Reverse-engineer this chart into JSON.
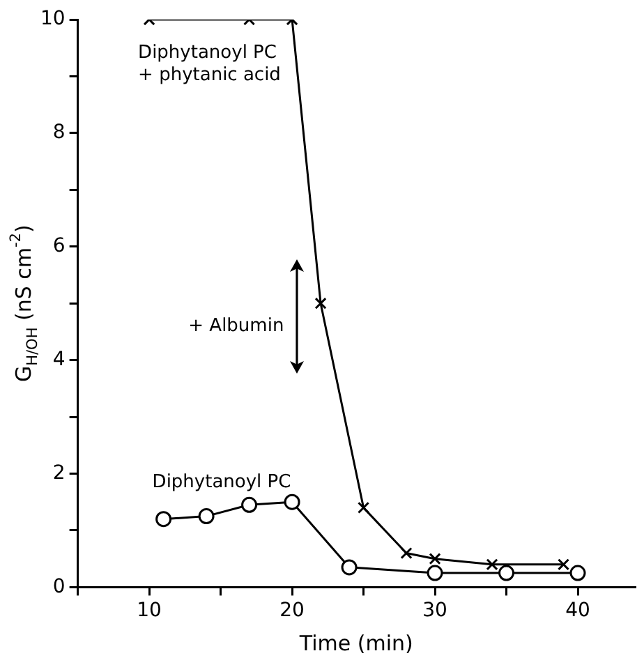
{
  "chart_data": {
    "type": "line",
    "xlabel": "Time (min)",
    "ylabel": "G$_{H/OH}$ (nS cm$^{-2}$)",
    "xlim": [
      5,
      44
    ],
    "xticks": [
      {
        "value": 5,
        "label": null
      },
      10,
      {
        "value": 15,
        "label": null
      },
      20,
      {
        "value": 25,
        "label": null
      },
      30,
      {
        "value": 35,
        "label": null
      },
      40
    ],
    "ylim": [
      0,
      10
    ],
    "yticks": [
      0,
      {
        "value": 1,
        "label": null
      },
      2,
      {
        "value": 3,
        "label": null
      },
      4,
      {
        "value": 5,
        "label": null
      },
      6,
      {
        "value": 7,
        "label": null
      },
      8,
      {
        "value": 9,
        "label": null
      },
      10
    ],
    "grid": false,
    "legend": false,
    "line_style": "solid",
    "series": [
      {
        "name": "Diphytanoyl PC + phytanic acid",
        "color": "#000000",
        "marker": "cross",
        "x": [
          10,
          17,
          20,
          22,
          25,
          28,
          30,
          34,
          39
        ],
        "values": [
          10,
          10,
          10,
          5,
          1.4,
          0.6,
          0.5,
          0.4,
          0.4
        ]
      },
      {
        "name": "Diphytanoyl PC",
        "color": "#000000",
        "marker": "circle",
        "x": [
          11,
          14,
          17,
          20,
          24,
          30,
          35,
          40
        ],
        "values": [
          1.2,
          1.25,
          1.45,
          1.5,
          0.35,
          0.25,
          0.25,
          0.25
        ]
      }
    ],
    "annotations": [
      "+ Albumin"
    ]
  }
}
